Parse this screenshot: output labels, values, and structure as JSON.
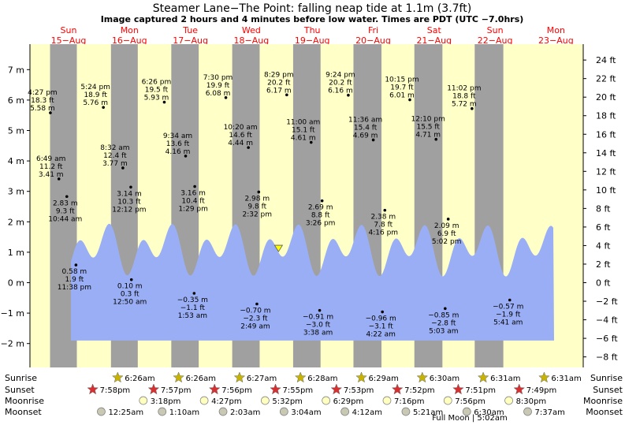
{
  "chart_data": {
    "type": "area",
    "title": "Steamer Lane−The Point: falling  neap tide at 1.1m (3.7ft)",
    "subtitle": "Image captured 2 hours and 4 minutes before low water. Times are PDT (UTC −7.0hrs)",
    "xlim": [
      0,
      8.25
    ],
    "ylim_m": [
      -2.6,
      7.4
    ],
    "y_left_ticks": [
      "7 m",
      "6 m",
      "5 m",
      "4 m",
      "3 m",
      "2 m",
      "1 m",
      "0 m",
      "−1 m",
      "−2 m"
    ],
    "y_right_ticks": [
      "24 ft",
      "22 ft",
      "20 ft",
      "18 ft",
      "16 ft",
      "14 ft",
      "12 ft",
      "10 ft",
      "8 ft",
      "6 ft",
      "4 ft",
      "2 ft",
      "0 ft",
      "−2 ft",
      "−4 ft",
      "−6 ft",
      "−8 ft"
    ],
    "days": [
      {
        "day": "Sun",
        "date": "15−Aug"
      },
      {
        "day": "Mon",
        "date": "16−Aug"
      },
      {
        "day": "Tue",
        "date": "17−Aug"
      },
      {
        "day": "Wed",
        "date": "18−Aug"
      },
      {
        "day": "Thu",
        "date": "19−Aug"
      },
      {
        "day": "Fri",
        "date": "20−Aug"
      },
      {
        "day": "Sat",
        "date": "21−Aug"
      },
      {
        "day": "Sun",
        "date": "22−Aug"
      },
      {
        "day": "Mon",
        "date": "23−Aug"
      }
    ],
    "nights": [
      [
        0.33,
        0.77
      ],
      [
        1.33,
        1.77
      ],
      [
        2.32,
        2.77
      ],
      [
        3.32,
        3.77
      ],
      [
        4.32,
        4.77
      ],
      [
        5.31,
        5.77
      ],
      [
        6.31,
        6.77
      ],
      [
        7.3,
        7.77
      ],
      [
        8.3,
        8.25
      ]
    ],
    "tide_extremes": [
      {
        "t": 0.6,
        "m": 0.58,
        "lines": [
          "0.58 m",
          "1.9 ft",
          "11:38 pm"
        ],
        "type": "low"
      },
      {
        "t": 0.32,
        "m": 3.41,
        "lines": [
          "6:49 am",
          "11.2 ft",
          "3.41 m"
        ],
        "type": "high"
      },
      {
        "t": 0.45,
        "m": 2.83,
        "lines": [
          "2.83 m",
          "9.3 ft",
          "10:44 am"
        ],
        "type": "low"
      },
      {
        "t": 0.18,
        "m": 5.58,
        "lines": [
          "4:27 pm",
          "18.3 ft",
          "5.58 m"
        ],
        "type": "high"
      },
      {
        "t": 1.05,
        "m": 5.76,
        "lines": [
          "5:24 pm",
          "18.9 ft",
          "5.76 m"
        ],
        "type": "high"
      },
      {
        "t": 1.51,
        "m": 0.1,
        "lines": [
          "0.10 m",
          "0.3 ft",
          "12:50 am"
        ],
        "type": "low"
      },
      {
        "t": 1.37,
        "m": 3.77,
        "lines": [
          "8:32 am",
          "12.4 ft",
          "3.77 m"
        ],
        "type": "high"
      },
      {
        "t": 1.5,
        "m": 3.14,
        "lines": [
          "3.14 m",
          "10.3 ft",
          "12:12 pm"
        ],
        "type": "low"
      },
      {
        "t": 2.05,
        "m": 5.93,
        "lines": [
          "6:26 pm",
          "19.5 ft",
          "5.93 m"
        ],
        "type": "high"
      },
      {
        "t": 2.54,
        "m": -0.35,
        "lines": [
          "−0.35 m",
          "−1.1 ft",
          "1:53 am"
        ],
        "type": "low"
      },
      {
        "t": 2.4,
        "m": 4.16,
        "lines": [
          "9:34 am",
          "13.6 ft",
          "4.16 m"
        ],
        "type": "high"
      },
      {
        "t": 2.55,
        "m": 3.16,
        "lines": [
          "3.16 m",
          "10.4 ft",
          "1:29 pm"
        ],
        "type": "low"
      },
      {
        "t": 3.06,
        "m": 6.08,
        "lines": [
          "7:30 pm",
          "19.9 ft",
          "6.08 m"
        ],
        "type": "high"
      },
      {
        "t": 3.57,
        "m": -0.7,
        "lines": [
          "−0.70 m",
          "−2.3 ft",
          "2:49 am"
        ],
        "type": "low"
      },
      {
        "t": 3.43,
        "m": 4.44,
        "lines": [
          "10:20 am",
          "14.6 ft",
          "4.44 m"
        ],
        "type": "high"
      },
      {
        "t": 3.6,
        "m": 2.98,
        "lines": [
          "2.98 m",
          "9.8 ft",
          "2:32 pm"
        ],
        "type": "low"
      },
      {
        "t": 4.06,
        "m": 6.17,
        "lines": [
          "8:29 pm",
          "20.2 ft",
          "6.17 m"
        ],
        "type": "high"
      },
      {
        "t": 4.6,
        "m": -0.91,
        "lines": [
          "−0.91 m",
          "−3.0 ft",
          "3:38 am"
        ],
        "type": "low"
      },
      {
        "t": 4.46,
        "m": 4.61,
        "lines": [
          "11:00 am",
          "15.1 ft",
          "4.61 m"
        ],
        "type": "high"
      },
      {
        "t": 4.64,
        "m": 2.69,
        "lines": [
          "2.69 m",
          "8.8 ft",
          "3:26 pm"
        ],
        "type": "low"
      },
      {
        "t": 5.07,
        "m": 6.16,
        "lines": [
          "9:24 pm",
          "20.2 ft",
          "6.16 m"
        ],
        "type": "high"
      },
      {
        "t": 5.63,
        "m": -0.96,
        "lines": [
          "−0.96 m",
          "−3.1 ft",
          "4:22 am"
        ],
        "type": "low"
      },
      {
        "t": 5.48,
        "m": 4.69,
        "lines": [
          "11:36 am",
          "15.4 ft",
          "4.69 m"
        ],
        "type": "high"
      },
      {
        "t": 5.67,
        "m": 2.38,
        "lines": [
          "2.38 m",
          "7.8 ft",
          "4:16 pm"
        ],
        "type": "low"
      },
      {
        "t": 6.08,
        "m": 6.01,
        "lines": [
          "10:15 pm",
          "19.7 ft",
          "6.01 m"
        ],
        "type": "high"
      },
      {
        "t": 6.66,
        "m": -0.85,
        "lines": [
          "−0.85 m",
          "−2.8 ft",
          "5:03 am"
        ],
        "type": "low"
      },
      {
        "t": 6.51,
        "m": 4.71,
        "lines": [
          "12:10 pm",
          "15.5 ft",
          "4.71 m"
        ],
        "type": "high"
      },
      {
        "t": 6.71,
        "m": 2.09,
        "lines": [
          "2.09 m",
          "6.9 ft",
          "5:02 pm"
        ],
        "type": "low"
      },
      {
        "t": 7.1,
        "m": 5.72,
        "lines": [
          "11:02 pm",
          "18.8 ft",
          "5.72 m"
        ],
        "type": "high"
      },
      {
        "t": 7.72,
        "m": -0.57,
        "lines": [
          "−0.57 m",
          "−1.9 ft",
          "5:41 am"
        ],
        "type": "low"
      }
    ],
    "current": {
      "t": 4.08,
      "m": 1.1
    },
    "sunrise": [
      "6:26am",
      "6:26am",
      "6:27am",
      "6:28am",
      "6:29am",
      "6:30am",
      "6:31am",
      "6:31am"
    ],
    "sunset": [
      "7:58pm",
      "7:57pm",
      "7:56pm",
      "7:55pm",
      "7:53pm",
      "7:52pm",
      "7:51pm",
      "7:49pm"
    ],
    "moonrise": [
      "3:18pm",
      "4:27pm",
      "5:32pm",
      "6:29pm",
      "7:16pm",
      "7:56pm",
      "8:30pm"
    ],
    "moonset": [
      "12:25am",
      "1:10am",
      "2:03am",
      "3:04am",
      "4:12am",
      "5:21am",
      "6:30am",
      "7:37am"
    ],
    "row_labels": {
      "sunrise": "Sunrise",
      "sunset": "Sunset",
      "moonrise": "Moonrise",
      "moonset": "Moonset"
    },
    "note": "Full Moon | 5:02am",
    "colors": {
      "day_bg": "#ffffc8",
      "night_bg": "#a0a0a0",
      "water": "#9aaef5",
      "day_label": "#ff0000"
    }
  }
}
